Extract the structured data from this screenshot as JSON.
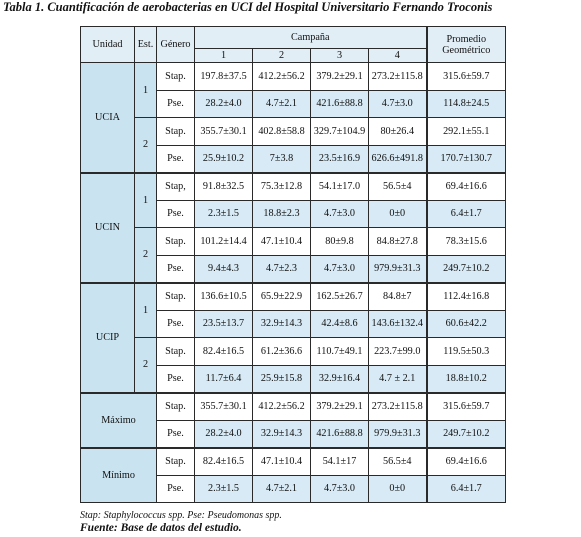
{
  "caption": "Tabla 1. Cuantificación de aerobacterias en UCI del Hospital Universitario Fernando Troconis",
  "headers": {
    "unidad": "Unidad",
    "est": "Est.",
    "genero": "Género",
    "campana": "Campaña",
    "campaign_numbers": [
      "1",
      "2",
      "3",
      "4"
    ],
    "promedio_line1": "Promedio",
    "promedio_line2": "Geométrico"
  },
  "units": [
    {
      "name": "UCIA",
      "stations": [
        {
          "est": "1",
          "rows": [
            {
              "genero": "Stap.",
              "values": [
                "197.8±37.5",
                "412.2±56.2",
                "379.2±29.1",
                "273.2±115.8"
              ],
              "promedio": "315.6±59.7"
            },
            {
              "genero": "Pse.",
              "values": [
                "28.2±4.0",
                "4.7±2.1",
                "421.6±88.8",
                "4.7±3.0"
              ],
              "promedio": "114.8±24.5"
            }
          ]
        },
        {
          "est": "2",
          "rows": [
            {
              "genero": "Stap.",
              "values": [
                "355.7±30.1",
                "402.8±58.8",
                "329.7±104.9",
                "80±26.4"
              ],
              "promedio": "292.1±55.1"
            },
            {
              "genero": "Pse.",
              "values": [
                "25.9±10.2",
                "7±3.8",
                "23.5±16.9",
                "626.6±491.8"
              ],
              "promedio": "170.7±130.7"
            }
          ]
        }
      ]
    },
    {
      "name": "UCIN",
      "stations": [
        {
          "est": "1",
          "rows": [
            {
              "genero": "Stap,",
              "values": [
                "91.8±32.5",
                "75.3±12.8",
                "54.1±17.0",
                "56.5±4"
              ],
              "promedio": "69.4±16.6"
            },
            {
              "genero": "Pse.",
              "values": [
                "2.3±1.5",
                "18.8±2.3",
                "4.7±3.0",
                "0±0"
              ],
              "promedio": "6.4±1.7"
            }
          ]
        },
        {
          "est": "2",
          "rows": [
            {
              "genero": "Stap.",
              "values": [
                "101.2±14.4",
                "47.1±10.4",
                "80±9.8",
                "84.8±27.8"
              ],
              "promedio": "78.3±15.6"
            },
            {
              "genero": "Pse.",
              "values": [
                "9.4±4.3",
                "4.7±2.3",
                "4.7±3.0",
                "979.9±31.3"
              ],
              "promedio": "249.7±10.2"
            }
          ]
        }
      ]
    },
    {
      "name": "UCIP",
      "stations": [
        {
          "est": "1",
          "rows": [
            {
              "genero": "Stap.",
              "values": [
                "136.6±10.5",
                "65.9±22.9",
                "162.5±26.7",
                "84.8±7"
              ],
              "promedio": "112.4±16.8"
            },
            {
              "genero": "Pse.",
              "values": [
                "23.5±13.7",
                "32.9±14.3",
                "42.4±8.6",
                "143.6±132.4"
              ],
              "promedio": "60.6±42.2"
            }
          ]
        },
        {
          "est": "2",
          "rows": [
            {
              "genero": "Stap.",
              "values": [
                "82.4±16.5",
                "61.2±36.6",
                "110.7±49.1",
                "223.7±99.0"
              ],
              "promedio": "119.5±50.3"
            },
            {
              "genero": "Pse.",
              "values": [
                "11.7±6.4",
                "25.9±15.8",
                "32.9±16.4",
                "4.7 ± 2.1"
              ],
              "promedio": "18.8±10.2"
            }
          ]
        }
      ]
    }
  ],
  "summary": [
    {
      "label": "Máximo",
      "rows": [
        {
          "genero": "Stap.",
          "values": [
            "355.7±30.1",
            "412.2±56.2",
            "379.2±29.1",
            "273.2±115.8"
          ],
          "promedio": "315.6±59.7"
        },
        {
          "genero": "Pse.",
          "values": [
            "28.2±4.0",
            "32.9±14.3",
            "421.6±88.8",
            "979.9±31.3"
          ],
          "promedio": "249.7±10.2"
        }
      ]
    },
    {
      "label": "Mínimo",
      "rows": [
        {
          "genero": "Stap.",
          "values": [
            "82.4±16.5",
            "47.1±10.4",
            "54.1±17",
            "56.5±4"
          ],
          "promedio": "69.4±16.6"
        },
        {
          "genero": "Pse.",
          "values": [
            "2.3±1.5",
            "4.7±2.1",
            "4.7±3.0",
            "0±0"
          ],
          "promedio": "6.4±1.7"
        }
      ]
    }
  ],
  "footnote": "Stap: Staphylococcus spp. Pse: Pseudomonas spp.",
  "source": "Fuente: Base de datos del estudio."
}
